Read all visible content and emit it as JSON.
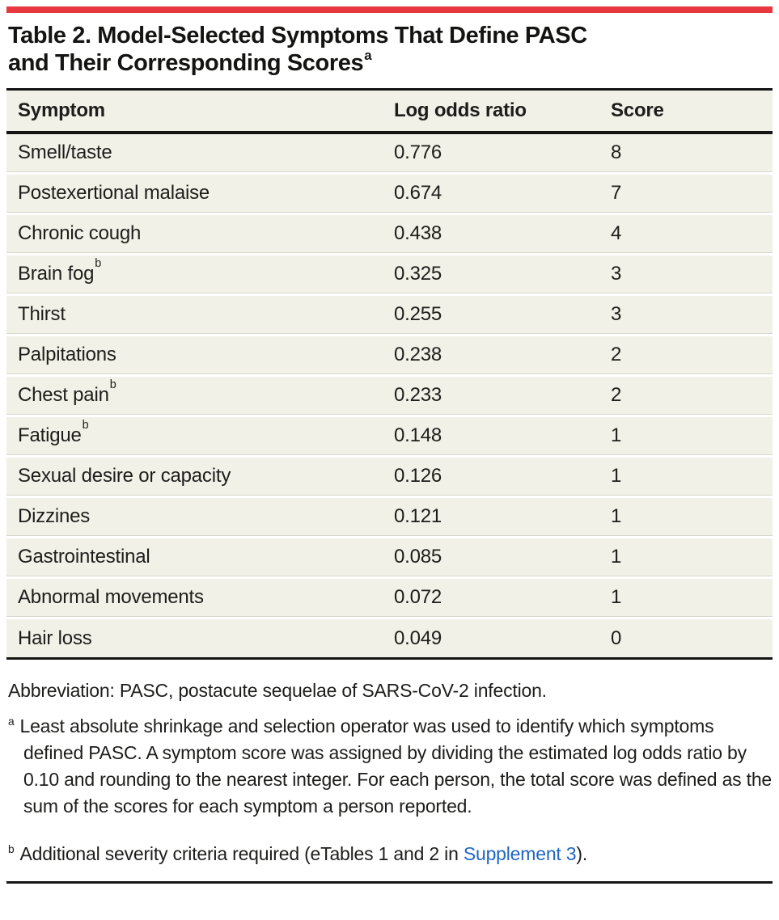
{
  "colors": {
    "accent_red": "#e6383e",
    "row_beige": "#f2f1e7",
    "rule_black": "#151515",
    "link_blue": "#2166c6"
  },
  "title": {
    "line1": "Table 2. Model-Selected Symptoms That Define PASC",
    "line2": "and Their Corresponding Scores",
    "line2_sup": "a"
  },
  "table": {
    "columns": [
      "Symptom",
      "Log odds ratio",
      "Score"
    ],
    "rows": [
      {
        "symptom": "Smell/taste",
        "sup": "",
        "log_odds_ratio": "0.776",
        "score": "8"
      },
      {
        "symptom": "Postexertional malaise",
        "sup": "",
        "log_odds_ratio": "0.674",
        "score": "7"
      },
      {
        "symptom": "Chronic cough",
        "sup": "",
        "log_odds_ratio": "0.438",
        "score": "4"
      },
      {
        "symptom": "Brain fog",
        "sup": "b",
        "log_odds_ratio": "0.325",
        "score": "3"
      },
      {
        "symptom": "Thirst",
        "sup": "",
        "log_odds_ratio": "0.255",
        "score": "3"
      },
      {
        "symptom": "Palpitations",
        "sup": "",
        "log_odds_ratio": "0.238",
        "score": "2"
      },
      {
        "symptom": "Chest pain",
        "sup": "b",
        "log_odds_ratio": "0.233",
        "score": "2"
      },
      {
        "symptom": "Fatigue",
        "sup": "b",
        "log_odds_ratio": "0.148",
        "score": "1"
      },
      {
        "symptom": "Sexual desire or capacity",
        "sup": "",
        "log_odds_ratio": "0.126",
        "score": "1"
      },
      {
        "symptom": "Dizzines",
        "sup": "",
        "log_odds_ratio": "0.121",
        "score": "1"
      },
      {
        "symptom": "Gastrointestinal",
        "sup": "",
        "log_odds_ratio": "0.085",
        "score": "1"
      },
      {
        "symptom": "Abnormal movements",
        "sup": "",
        "log_odds_ratio": "0.072",
        "score": "1"
      },
      {
        "symptom": "Hair loss",
        "sup": "",
        "log_odds_ratio": "0.049",
        "score": "0"
      }
    ]
  },
  "footnotes": {
    "abbreviation": "Abbreviation: PASC, postacute sequelae of SARS-CoV-2 infection.",
    "a": {
      "sup": "a",
      "text": "Least absolute shrinkage and selection operator was used to identify which symptoms defined PASC. A symptom score was assigned by dividing the estimated log odds ratio by 0.10 and rounding to the nearest integer. For each person, the total score was defined as the sum of the scores for each symptom a person reported."
    },
    "b": {
      "sup": "b",
      "text_before_link": "Additional severity criteria required (eTables 1 and 2 in ",
      "link": "Supplement 3",
      "text_after_link": ")."
    }
  }
}
